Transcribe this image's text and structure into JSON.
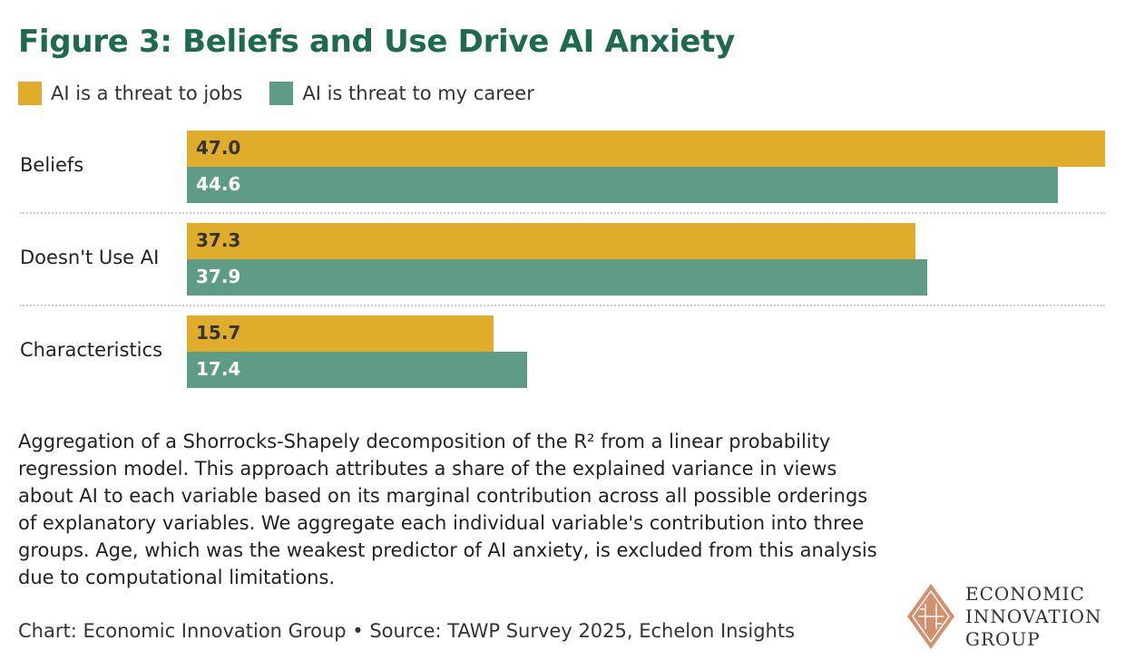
{
  "chart_data": {
    "type": "bar",
    "orientation": "horizontal",
    "title": "Figure 3: Beliefs and Use Drive AI Anxiety",
    "categories": [
      "Beliefs",
      "Doesn't Use AI",
      "Characteristics"
    ],
    "series": [
      {
        "name": "AI is a threat to jobs",
        "color": "#E0AC2B",
        "values": [
          47.0,
          37.3,
          15.7
        ]
      },
      {
        "name": "AI is threat to my career",
        "color": "#5E9C86",
        "values": [
          44.6,
          37.9,
          17.4
        ]
      }
    ],
    "xlim": [
      0,
      47.0
    ],
    "legend": "top-left",
    "grid": false
  },
  "note": "Aggregation of a Shorrocks-Shapely decomposition of the R² from a linear probability regression model. This approach attributes a share of the explained variance in views about AI to each variable based on its marginal contribution across all possible orderings of explanatory variables. We aggregate each individual variable's contribution into three groups. Age, which was the weakest predictor of AI anxiety, is excluded from this analysis due to computational limitations.",
  "source": "Chart: Economic Innovation Group • Source: TAWP Survey 2025, Echelon Insights",
  "logo": {
    "line1": "ECONOMIC",
    "line2": "INNOVATION",
    "line3": "GROUP"
  }
}
